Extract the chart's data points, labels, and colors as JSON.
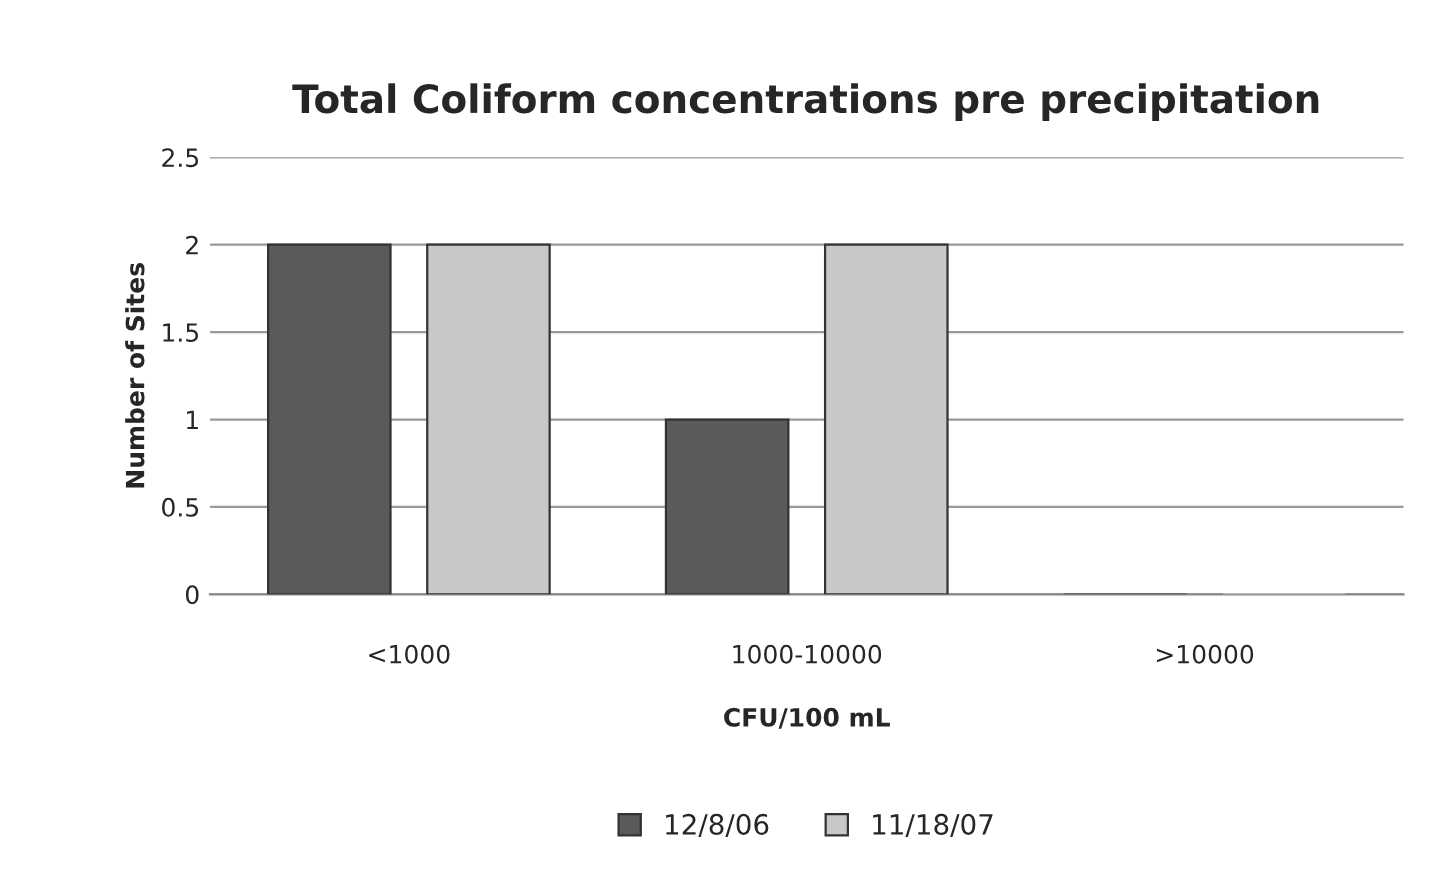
{
  "chart_data": {
    "type": "bar",
    "title": "Total Coliform concentrations pre precipitation",
    "xlabel": "CFU/100 mL",
    "ylabel": "Number of Sites",
    "categories": [
      "<1000",
      "1000-10000",
      ">10000"
    ],
    "series": [
      {
        "name": "12/8/06",
        "color": "#5a5a5a",
        "values": [
          2,
          1,
          0
        ]
      },
      {
        "name": "11/18/07",
        "color": "#c8c8c8",
        "values": [
          2,
          2,
          0
        ]
      }
    ],
    "ylim": [
      0,
      2.5
    ],
    "yticks": [
      0,
      0.5,
      1,
      1.5,
      2,
      2.5
    ],
    "grid": "y",
    "legend": "bottom"
  }
}
